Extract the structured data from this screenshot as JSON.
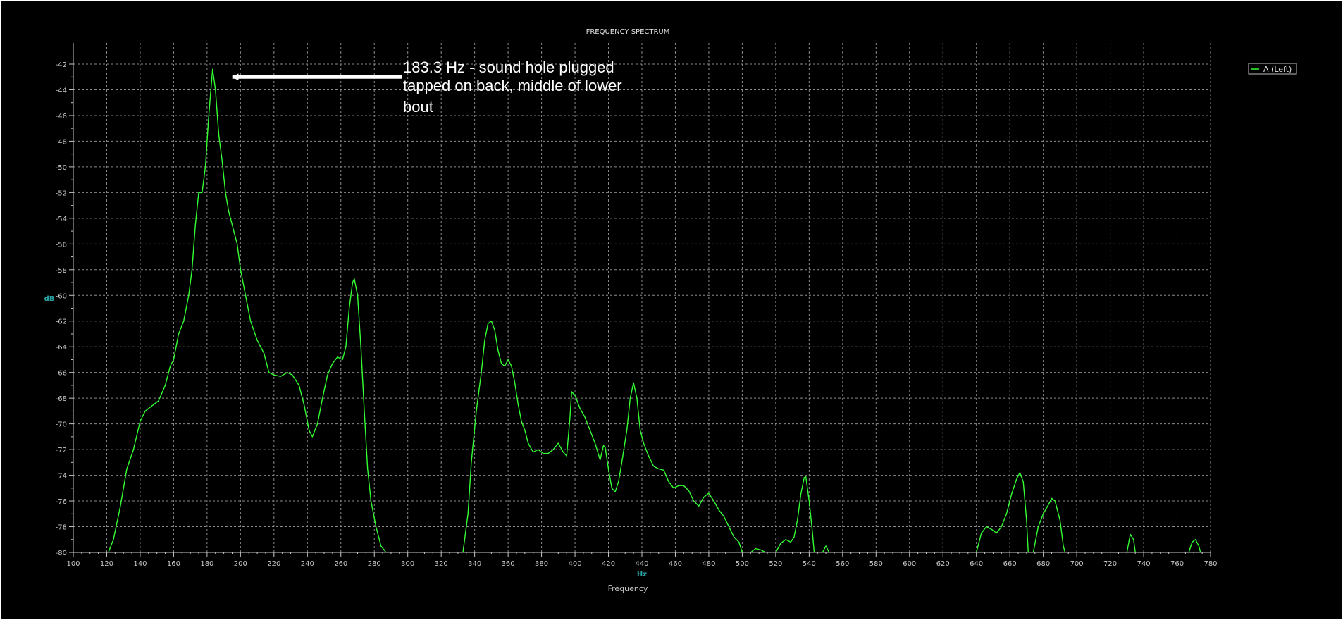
{
  "chart_data": {
    "type": "line",
    "title": "FREQUENCY SPECTRUM",
    "xlabel": "Frequency",
    "xunit": "Hz",
    "ylabel": "dB",
    "xlim": [
      100,
      780
    ],
    "ylim": [
      -80,
      -42
    ],
    "xticks": [
      100,
      120,
      140,
      160,
      180,
      200,
      220,
      240,
      260,
      280,
      300,
      320,
      340,
      360,
      380,
      400,
      420,
      440,
      460,
      480,
      500,
      520,
      540,
      560,
      580,
      600,
      620,
      640,
      660,
      680,
      700,
      720,
      740,
      760,
      780
    ],
    "yticks": [
      -42,
      -44,
      -46,
      -48,
      -50,
      -52,
      -54,
      -56,
      -58,
      -60,
      -62,
      -64,
      -66,
      -68,
      -70,
      -72,
      -74,
      -76,
      -78,
      -80
    ],
    "grid": true,
    "legend_position": "top-right",
    "colors": {
      "series": "#33ff33",
      "background": "#000000",
      "grid": "#8a8a8a",
      "axis": "#c8c8c8"
    },
    "series": [
      {
        "name": "A (Left)",
        "segments": [
          [
            [
              121,
              -80
            ],
            [
              124,
              -79
            ],
            [
              128,
              -76.5
            ],
            [
              132,
              -73.5
            ],
            [
              136,
              -72
            ],
            [
              140,
              -69.8
            ],
            [
              143,
              -69
            ],
            [
              147,
              -68.6
            ],
            [
              151,
              -68.2
            ],
            [
              155,
              -67
            ],
            [
              158,
              -65.5
            ],
            [
              160,
              -65
            ],
            [
              163,
              -63
            ],
            [
              166,
              -62
            ],
            [
              169,
              -60
            ],
            [
              171,
              -58
            ],
            [
              173,
              -54.5
            ],
            [
              175,
              -52
            ],
            [
              177,
              -52
            ],
            [
              179,
              -50
            ],
            [
              181,
              -46
            ],
            [
              183.3,
              -42.4
            ],
            [
              185,
              -44
            ],
            [
              187,
              -47.5
            ],
            [
              189,
              -49.5
            ],
            [
              191,
              -52
            ],
            [
              193,
              -53.5
            ],
            [
              195,
              -54.5
            ],
            [
              198,
              -56
            ],
            [
              200,
              -58
            ],
            [
              203,
              -60
            ],
            [
              206,
              -62
            ],
            [
              210,
              -63.5
            ],
            [
              214,
              -64.5
            ],
            [
              217,
              -66
            ],
            [
              220,
              -66.2
            ],
            [
              224,
              -66.3
            ],
            [
              228,
              -66
            ],
            [
              231,
              -66.2
            ],
            [
              235,
              -67
            ],
            [
              238,
              -68.5
            ],
            [
              241,
              -70.5
            ],
            [
              243,
              -71
            ],
            [
              246,
              -70
            ],
            [
              249,
              -68
            ],
            [
              252,
              -66.2
            ],
            [
              255,
              -65.3
            ],
            [
              258,
              -64.8
            ],
            [
              261,
              -65
            ],
            [
              263,
              -64
            ],
            [
              265,
              -61
            ],
            [
              267,
              -59
            ],
            [
              268,
              -58.7
            ],
            [
              270,
              -60
            ],
            [
              272,
              -64
            ],
            [
              274,
              -69
            ],
            [
              276,
              -73.5
            ],
            [
              278,
              -76
            ],
            [
              281,
              -78
            ],
            [
              284,
              -79.5
            ],
            [
              287,
              -80
            ]
          ],
          [
            [
              333,
              -80
            ],
            [
              336,
              -77
            ],
            [
              338,
              -73
            ],
            [
              341,
              -69
            ],
            [
              344,
              -66
            ],
            [
              346,
              -63.5
            ],
            [
              348,
              -62.2
            ],
            [
              350,
              -62
            ],
            [
              352,
              -62.7
            ],
            [
              354,
              -64.3
            ],
            [
              356,
              -65.3
            ],
            [
              358,
              -65.5
            ],
            [
              360,
              -65
            ],
            [
              362,
              -65.5
            ],
            [
              364,
              -66.8
            ],
            [
              366,
              -68.5
            ],
            [
              368,
              -69.8
            ],
            [
              370,
              -70.5
            ],
            [
              372,
              -71.5
            ],
            [
              375,
              -72.2
            ],
            [
              378,
              -72
            ],
            [
              381,
              -72.3
            ],
            [
              384,
              -72.3
            ],
            [
              387,
              -72
            ],
            [
              390,
              -71.5
            ],
            [
              393,
              -72.2
            ],
            [
              395,
              -72.5
            ],
            [
              397,
              -69.5
            ],
            [
              398,
              -67.5
            ],
            [
              400,
              -67.8
            ],
            [
              403,
              -68.8
            ],
            [
              406,
              -69.5
            ],
            [
              409,
              -70.5
            ],
            [
              412,
              -71.5
            ],
            [
              415,
              -72.8
            ],
            [
              417,
              -71.7
            ],
            [
              418,
              -71.8
            ],
            [
              420,
              -73.5
            ],
            [
              422,
              -75
            ],
            [
              424,
              -75.3
            ],
            [
              426,
              -74.5
            ],
            [
              428,
              -73
            ],
            [
              431,
              -70.5
            ],
            [
              433,
              -68
            ],
            [
              435,
              -66.8
            ],
            [
              437,
              -68
            ],
            [
              439,
              -70.5
            ],
            [
              441,
              -71.5
            ],
            [
              444,
              -72.5
            ],
            [
              447,
              -73.3
            ],
            [
              450,
              -73.5
            ],
            [
              453,
              -73.6
            ],
            [
              456,
              -74.5
            ],
            [
              459,
              -75
            ],
            [
              462,
              -74.8
            ],
            [
              465,
              -74.8
            ],
            [
              468,
              -75.2
            ],
            [
              471,
              -76
            ],
            [
              474,
              -76.4
            ],
            [
              477,
              -75.7
            ],
            [
              480,
              -75.4
            ],
            [
              483,
              -76
            ],
            [
              486,
              -76.7
            ],
            [
              489,
              -77.2
            ],
            [
              492,
              -78
            ],
            [
              495,
              -78.8
            ],
            [
              498,
              -79.2
            ],
            [
              500,
              -80
            ]
          ],
          [
            [
              505,
              -80
            ],
            [
              508,
              -79.7
            ],
            [
              511,
              -79.8
            ],
            [
              514,
              -80
            ]
          ],
          [
            [
              520,
              -80
            ],
            [
              523,
              -79.3
            ],
            [
              526,
              -79
            ],
            [
              529,
              -79.2
            ],
            [
              531,
              -78.8
            ],
            [
              533,
              -77.5
            ],
            [
              535,
              -75.5
            ],
            [
              537,
              -74.2
            ],
            [
              538,
              -74.1
            ],
            [
              540,
              -76
            ],
            [
              542,
              -78.5
            ],
            [
              543,
              -80
            ]
          ],
          [
            [
              548,
              -80
            ],
            [
              550,
              -79.5
            ],
            [
              552,
              -80
            ]
          ],
          [
            [
              640,
              -80
            ],
            [
              643,
              -78.5
            ],
            [
              646,
              -78
            ],
            [
              649,
              -78.2
            ],
            [
              652,
              -78.5
            ],
            [
              655,
              -78
            ],
            [
              658,
              -77
            ],
            [
              661,
              -75.5
            ],
            [
              664,
              -74.3
            ],
            [
              666,
              -73.8
            ],
            [
              668,
              -74.5
            ],
            [
              670,
              -77.5
            ],
            [
              671,
              -80
            ]
          ],
          [
            [
              674,
              -80
            ],
            [
              677,
              -78
            ],
            [
              680,
              -77
            ],
            [
              683,
              -76.3
            ],
            [
              685,
              -75.8
            ],
            [
              687,
              -76
            ],
            [
              690,
              -77.5
            ],
            [
              692,
              -79.5
            ],
            [
              693,
              -80
            ]
          ],
          [
            [
              730,
              -80
            ],
            [
              732,
              -78.6
            ],
            [
              734,
              -79
            ],
            [
              735,
              -80
            ]
          ],
          [
            [
              767,
              -80
            ],
            [
              769,
              -79.2
            ],
            [
              771,
              -79
            ],
            [
              773,
              -79.5
            ],
            [
              774,
              -80
            ]
          ]
        ]
      }
    ],
    "annotations": [
      {
        "lines": [
          "183.3 Hz - sound hole plugged",
          "tapped on back, middle of lower",
          "bout"
        ],
        "arrow_to": [
          183.3,
          -43
        ]
      }
    ]
  }
}
